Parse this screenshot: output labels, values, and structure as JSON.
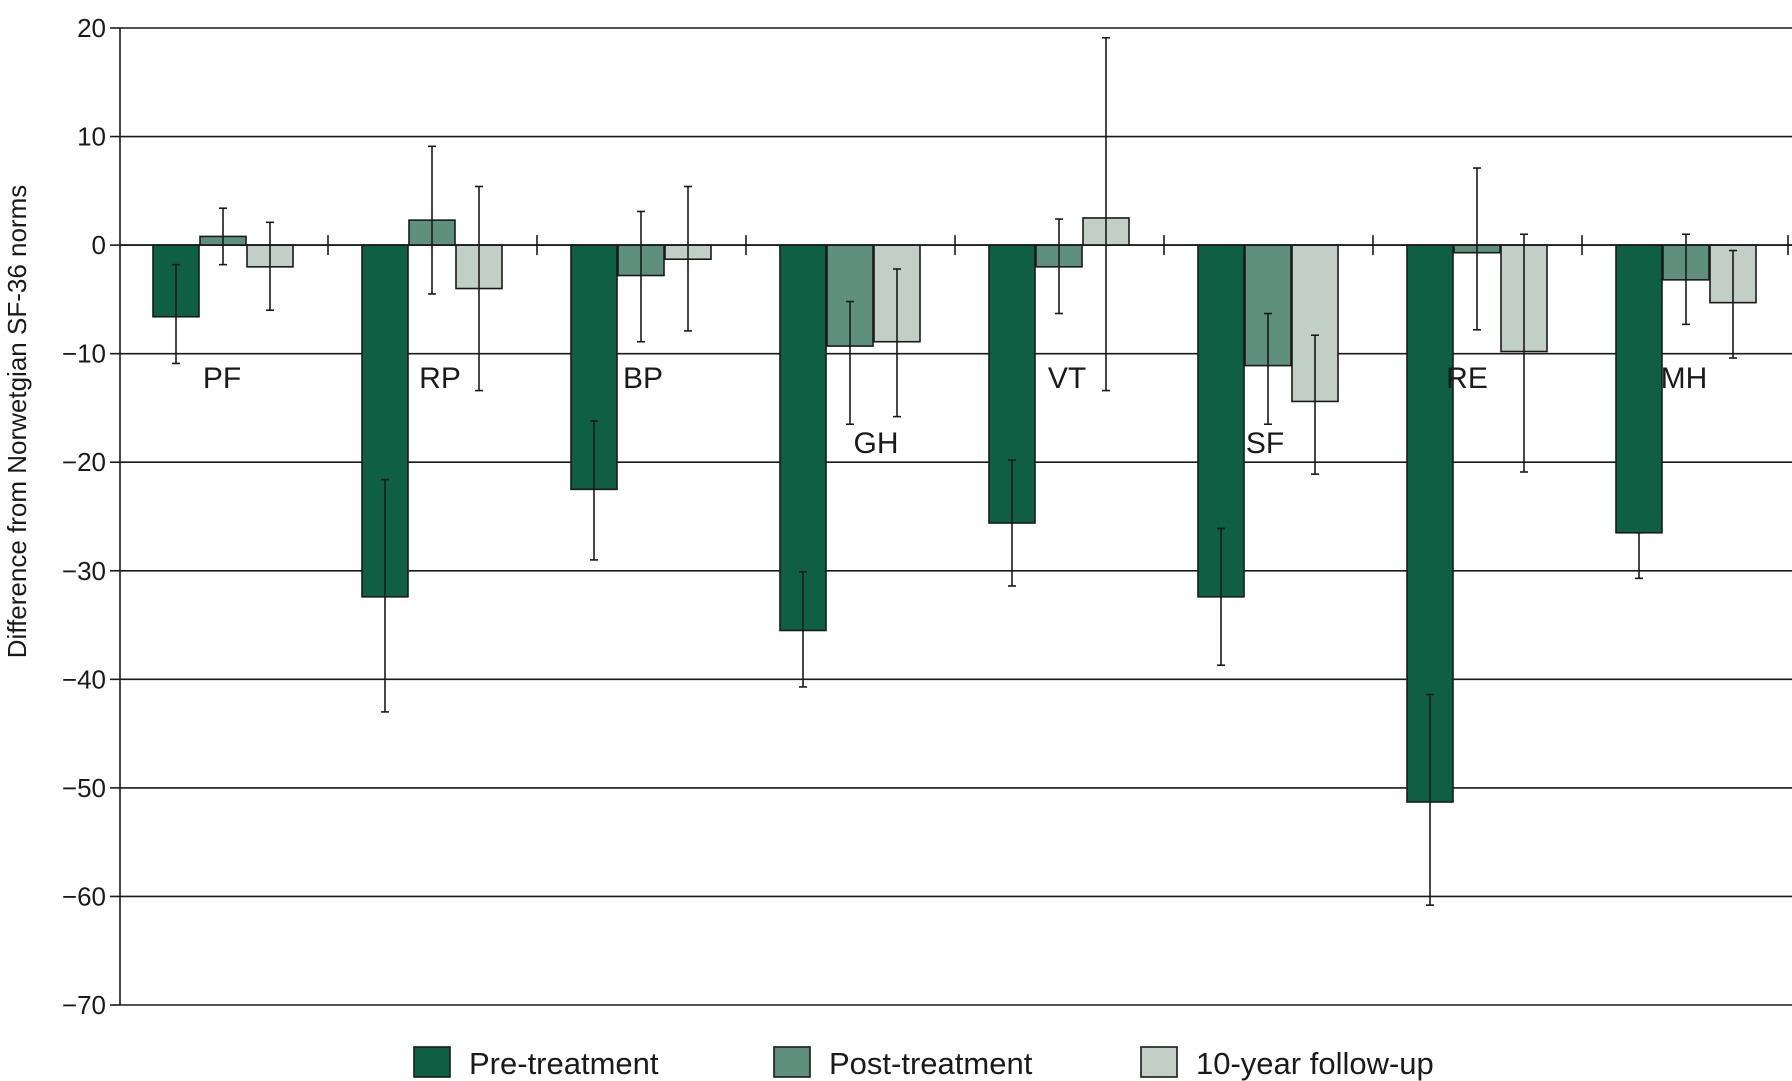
{
  "chart_data": {
    "type": "bar",
    "title": "",
    "xlabel": "",
    "ylabel": "Difference from Norwetgian SF-36 norms",
    "ylim": [
      -70,
      20
    ],
    "yticks": [
      20,
      10,
      0,
      -10,
      -20,
      -30,
      -40,
      -50,
      -60,
      -70
    ],
    "ytick_labels": [
      "20",
      "10",
      "0",
      "−10",
      "−20",
      "−30",
      "−40",
      "−50",
      "−60",
      "−70"
    ],
    "grid": true,
    "legend_position": "bottom",
    "categories": [
      "PF",
      "RP",
      "BP",
      "GH",
      "VT",
      "SF",
      "RE",
      "MH"
    ],
    "series": [
      {
        "name": "Pre-treatment",
        "color": "#0f5f45",
        "values": [
          -6.6,
          -32.4,
          -22.5,
          -35.5,
          -25.6,
          -32.4,
          -51.3,
          -26.5
        ],
        "err_low": [
          -10.9,
          -43.0,
          -29.0,
          -40.7,
          -31.4,
          -38.7,
          -60.8,
          -30.7
        ],
        "err_high": [
          -1.8,
          -21.6,
          -16.2,
          -30.1,
          -19.8,
          -26.1,
          -41.4,
          -26.5
        ]
      },
      {
        "name": "Post-treatment",
        "color": "#5f8f7d",
        "values": [
          0.8,
          2.3,
          -2.8,
          -9.3,
          -2.0,
          -11.1,
          -0.7,
          -3.2
        ],
        "err_low": [
          -1.8,
          -4.5,
          -8.9,
          -16.5,
          -6.3,
          -16.5,
          -7.8,
          -7.3
        ],
        "err_high": [
          3.4,
          9.1,
          3.1,
          -5.2,
          2.4,
          -6.3,
          7.1,
          1.0
        ]
      },
      {
        "name": "10-year follow-up",
        "color": "#c2cfc7",
        "values": [
          -2.0,
          -4.0,
          -1.3,
          -8.9,
          2.5,
          -14.4,
          -9.8,
          -5.3
        ],
        "err_low": [
          -6.0,
          -13.4,
          -7.9,
          -15.8,
          -13.4,
          -21.1,
          -20.9,
          -10.4
        ],
        "err_high": [
          2.1,
          5.4,
          5.4,
          -2.2,
          19.1,
          -8.3,
          1.0,
          -0.5
        ]
      }
    ]
  }
}
